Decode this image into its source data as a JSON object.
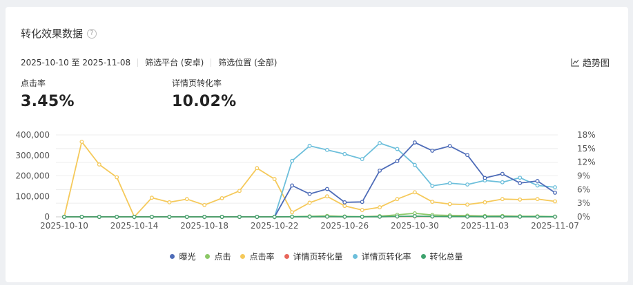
{
  "card": {
    "title": "转化效果数据",
    "help_icon": "?",
    "date_range": "2025-10-10 至 2025-11-08",
    "platform_filter": "筛选平台 (安卓)",
    "position_filter": "筛选位置 (全部)",
    "trend_button": "趋势图"
  },
  "metrics": [
    {
      "label": "点击率",
      "value": "3.45%"
    },
    {
      "label": "详情页转化率",
      "value": "10.02%"
    }
  ],
  "colors": {
    "exposure": "#4e6cb8",
    "clicks": "#8cc867",
    "ctr": "#f5c95a",
    "detail_conv_count": "#e8655a",
    "detail_conv_rate": "#6dbfdb",
    "total_conv": "#3ea36e"
  },
  "chart_data": {
    "type": "line",
    "x": [
      "2025-10-10",
      "2025-10-11",
      "2025-10-12",
      "2025-10-13",
      "2025-10-14",
      "2025-10-15",
      "2025-10-16",
      "2025-10-17",
      "2025-10-18",
      "2025-10-19",
      "2025-10-20",
      "2025-10-21",
      "2025-10-22",
      "2025-10-23",
      "2025-10-24",
      "2025-10-25",
      "2025-10-26",
      "2025-10-27",
      "2025-10-28",
      "2025-10-29",
      "2025-10-30",
      "2025-10-31",
      "2025-11-01",
      "2025-11-02",
      "2025-11-03",
      "2025-11-04",
      "2025-11-05",
      "2025-11-06",
      "2025-11-07"
    ],
    "x_tick_labels": [
      "2025-10-10",
      "2025-10-14",
      "2025-10-18",
      "2025-10-22",
      "2025-10-26",
      "2025-10-30",
      "2025-11-03",
      "2025-11-07"
    ],
    "y_left": {
      "ticks": [
        "0",
        "100,000",
        "200,000",
        "300,000",
        "400,000"
      ],
      "lim": [
        0,
        400000
      ]
    },
    "y_right": {
      "ticks": [
        "0%",
        "3%",
        "6%",
        "9%",
        "12%",
        "15%",
        "18%"
      ],
      "lim": [
        0,
        18
      ]
    },
    "grid": true,
    "legend_position": "bottom",
    "series": [
      {
        "name": "曝光",
        "axis": "left",
        "color_key": "exposure",
        "values": [
          0,
          0,
          0,
          0,
          0,
          0,
          0,
          0,
          0,
          0,
          0,
          0,
          0,
          153000,
          112000,
          136000,
          71000,
          73000,
          226000,
          272000,
          363000,
          323000,
          346000,
          302000,
          190000,
          210000,
          165000,
          175000,
          118000
        ]
      },
      {
        "name": "点击",
        "axis": "left",
        "color_key": "clicks",
        "values": [
          0,
          0,
          0,
          0,
          0,
          0,
          0,
          0,
          0,
          0,
          0,
          0,
          0,
          1000,
          2500,
          4500,
          2000,
          1000,
          3500,
          10000,
          17000,
          9000,
          7000,
          6000,
          4000,
          4500,
          3000,
          2800,
          1500
        ]
      },
      {
        "name": "点击率",
        "axis": "right",
        "color_key": "ctr",
        "values": [
          0,
          16.5,
          11.5,
          8.7,
          0,
          4.2,
          3.2,
          3.9,
          2.6,
          4.1,
          5.7,
          10.7,
          8.3,
          1.0,
          3.1,
          4.5,
          2.4,
          1.5,
          2.1,
          3.9,
          5.4,
          3.3,
          2.8,
          2.7,
          3.2,
          3.9,
          3.8,
          3.9,
          3.4
        ]
      },
      {
        "name": "详情页转化量",
        "axis": "left",
        "color_key": "detail_conv_count",
        "values": [
          0,
          0,
          0,
          0,
          0,
          0,
          0,
          0,
          0,
          0,
          0,
          0,
          0,
          300,
          500,
          800,
          400,
          300,
          600,
          1500,
          2500,
          1500,
          1000,
          900,
          700,
          800,
          600,
          500,
          400
        ]
      },
      {
        "name": "详情页转化率",
        "axis": "right",
        "color_key": "detail_conv_rate",
        "values": [
          0,
          0,
          0,
          0,
          0,
          0,
          0,
          0,
          0,
          0,
          0,
          0,
          0,
          12.3,
          15.6,
          14.7,
          13.8,
          12.7,
          16.2,
          14.9,
          11.4,
          6.8,
          7.4,
          7.1,
          8.0,
          7.6,
          8.6,
          6.9,
          6.5
        ]
      },
      {
        "name": "转化总量",
        "axis": "left",
        "color_key": "total_conv",
        "values": [
          0,
          0,
          0,
          0,
          0,
          0,
          0,
          0,
          0,
          0,
          0,
          0,
          0,
          400,
          700,
          1100,
          500,
          400,
          800,
          2000,
          3200,
          2000,
          1400,
          1200,
          900,
          1000,
          800,
          700,
          500
        ]
      }
    ]
  }
}
